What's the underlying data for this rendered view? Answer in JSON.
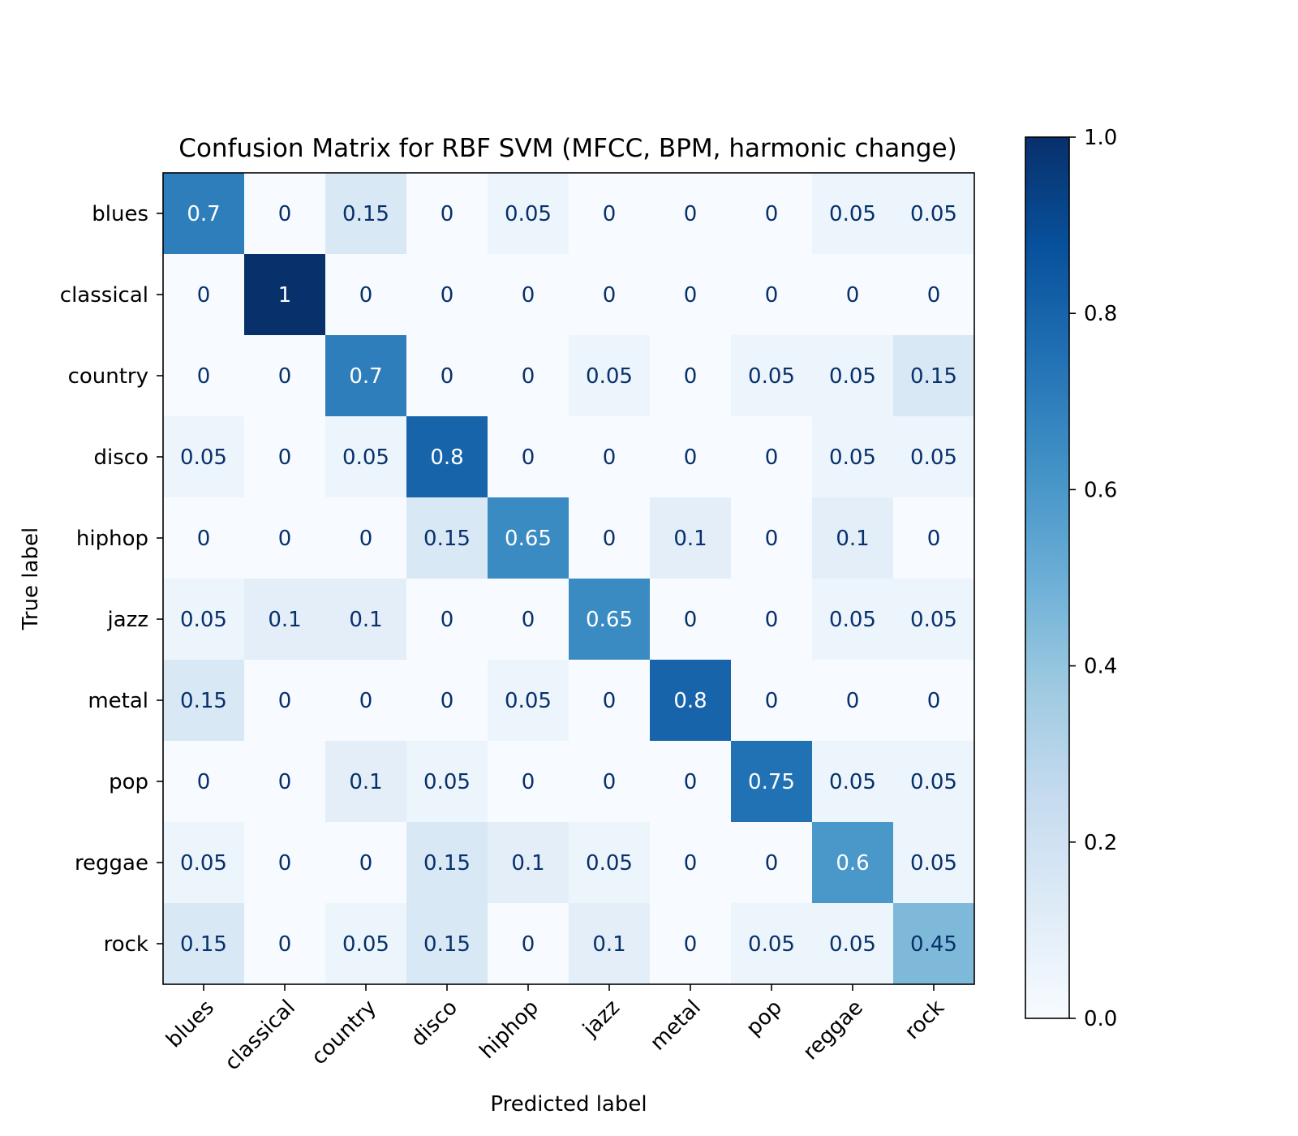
{
  "chart_data": {
    "type": "heatmap",
    "title": "Confusion Matrix for RBF SVM (MFCC, BPM, harmonic change)",
    "xlabel": "Predicted label",
    "ylabel": "True label",
    "x_categories": [
      "blues",
      "classical",
      "country",
      "disco",
      "hiphop",
      "jazz",
      "metal",
      "pop",
      "reggae",
      "rock"
    ],
    "y_categories": [
      "blues",
      "classical",
      "country",
      "disco",
      "hiphop",
      "jazz",
      "metal",
      "pop",
      "reggae",
      "rock"
    ],
    "values": [
      [
        0.7,
        0,
        0.15,
        0,
        0.05,
        0,
        0,
        0,
        0.05,
        0.05
      ],
      [
        0,
        1,
        0,
        0,
        0,
        0,
        0,
        0,
        0,
        0
      ],
      [
        0,
        0,
        0.7,
        0,
        0,
        0.05,
        0,
        0.05,
        0.05,
        0.15
      ],
      [
        0.05,
        0,
        0.05,
        0.8,
        0,
        0,
        0,
        0,
        0.05,
        0.05
      ],
      [
        0,
        0,
        0,
        0.15,
        0.65,
        0,
        0.1,
        0,
        0.1,
        0
      ],
      [
        0.05,
        0.1,
        0.1,
        0,
        0,
        0.65,
        0,
        0,
        0.05,
        0.05
      ],
      [
        0.15,
        0,
        0,
        0,
        0.05,
        0,
        0.8,
        0,
        0,
        0
      ],
      [
        0,
        0,
        0.1,
        0.05,
        0,
        0,
        0,
        0.75,
        0.05,
        0.05
      ],
      [
        0.05,
        0,
        0,
        0.15,
        0.1,
        0.05,
        0,
        0,
        0.6,
        0.05
      ],
      [
        0.15,
        0,
        0.05,
        0.15,
        0,
        0.1,
        0,
        0.05,
        0.05,
        0.45
      ]
    ],
    "colormap": "Blues",
    "colorbar": {
      "range": [
        0,
        1
      ],
      "ticks": [
        0.0,
        0.2,
        0.4,
        0.6,
        0.8,
        1.0
      ],
      "tick_labels": [
        "0.0",
        "0.2",
        "0.4",
        "0.6",
        "0.8",
        "1.0"
      ]
    },
    "text_color_light": "#ffffff",
    "text_color_dark": "#08306b"
  }
}
